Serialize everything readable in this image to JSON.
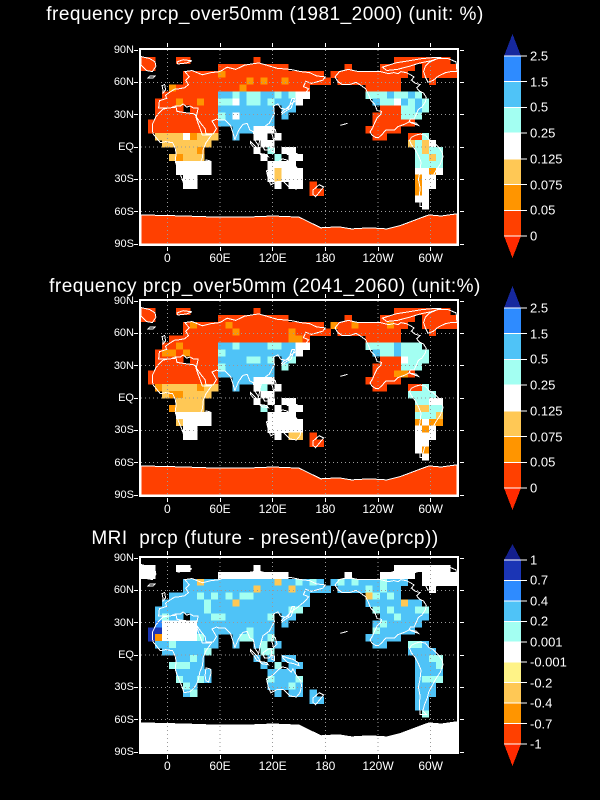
{
  "background": "#000000",
  "text_color": "#FFFFFF",
  "grid_color": "#9A9A9A",
  "coastline_color": "#FFFFFF",
  "ocean_color": "#000000",
  "chart_data": [
    {
      "type": "heatmap",
      "title": "frequency prcp_over50mm (1981_2000) (unit: %)",
      "x_ticks": [
        "0",
        "60E",
        "120E",
        "180",
        "120W",
        "60W"
      ],
      "y_ticks": [
        "90N",
        "60N",
        "30N",
        "EQ",
        "30S",
        "60S",
        "90S"
      ],
      "colorbar": {
        "tick_labels": [
          "2.5",
          "1.5",
          "0.5",
          "0.25",
          "0.125",
          "0.075",
          "0.05",
          "0"
        ],
        "segment_colors_top_to_bottom": [
          "#2E8BFF",
          "#4FC3F7",
          "#A3FFF2",
          "#FFFFFF",
          "#FFC855",
          "#FF9500",
          "#FF4000"
        ],
        "arrow_top_color": "#16289E",
        "arrow_bottom_color": "#FF2A00"
      }
    },
    {
      "type": "heatmap",
      "title": "frequency prcp_over50mm (2041_2060) (unit:%)",
      "x_ticks": [
        "0",
        "60E",
        "120E",
        "180",
        "120W",
        "60W"
      ],
      "y_ticks": [
        "90N",
        "60N",
        "30N",
        "EQ",
        "30S",
        "60S",
        "90S"
      ],
      "colorbar": {
        "tick_labels": [
          "2.5",
          "1.5",
          "0.5",
          "0.25",
          "0.125",
          "0.075",
          "0.05",
          "0"
        ],
        "segment_colors_top_to_bottom": [
          "#2E8BFF",
          "#4FC3F7",
          "#A3FFF2",
          "#FFFFFF",
          "#FFC855",
          "#FF9500",
          "#FF4000"
        ],
        "arrow_top_color": "#16289E",
        "arrow_bottom_color": "#FF2A00"
      }
    },
    {
      "type": "heatmap",
      "title": "MRI  prcp (future - present)/(ave(prcp))",
      "x_ticks": [
        "0",
        "60E",
        "120E",
        "180",
        "120W",
        "60W"
      ],
      "y_ticks": [
        "90N",
        "60N",
        "30N",
        "EQ",
        "30S",
        "60S",
        "90S"
      ],
      "colorbar": {
        "tick_labels": [
          "1",
          "0.7",
          "0.4",
          "0.2",
          "0.001",
          "-0.001",
          "-0.2",
          "-0.4",
          "-0.7",
          "-1"
        ],
        "segment_colors_top_to_bottom": [
          "#1B35B5",
          "#2E8BFF",
          "#4FC3F7",
          "#A3FFF2",
          "#FFFFFF",
          "#FFF387",
          "#FFC855",
          "#FF9500",
          "#FF4000"
        ],
        "arrow_top_color": "#141F8C",
        "arrow_bottom_color": "#FF2A00"
      }
    }
  ]
}
